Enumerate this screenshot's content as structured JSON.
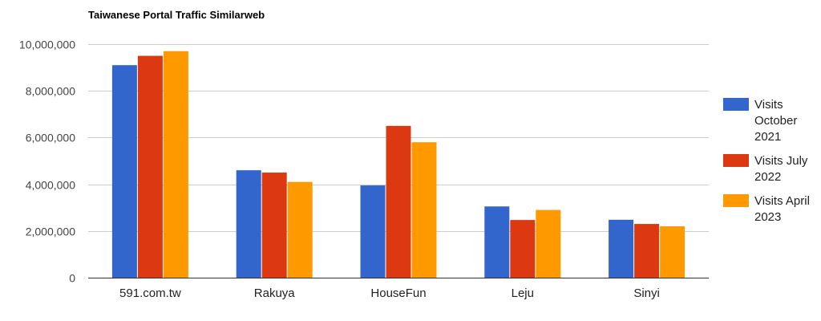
{
  "chart_data": {
    "type": "bar",
    "title": "Taiwanese Portal Traffic Similarweb",
    "xlabel": "",
    "ylabel": "",
    "categories": [
      "591.com.tw",
      "Rakuya",
      "HouseFun",
      "Leju",
      "Sinyi"
    ],
    "series": [
      {
        "name": "Visits October 2021",
        "color": "#3366cc",
        "values": [
          9100000,
          4600000,
          3950000,
          3050000,
          2480000
        ],
        "legend_lines": [
          "Visits",
          "October",
          "2021"
        ]
      },
      {
        "name": "Visits July 2022",
        "color": "#dc3912",
        "values": [
          9500000,
          4500000,
          6500000,
          2470000,
          2300000
        ],
        "legend_lines": [
          "Visits July",
          "2022"
        ]
      },
      {
        "name": "Visits April 2023",
        "color": "#ff9900",
        "values": [
          9700000,
          4100000,
          5800000,
          2900000,
          2200000
        ],
        "legend_lines": [
          "Visits April",
          "2023"
        ]
      }
    ],
    "ylim": [
      0,
      10000000
    ],
    "yticks": [
      0,
      2000000,
      4000000,
      6000000,
      8000000,
      10000000
    ],
    "ytick_labels": [
      "0",
      "2,000,000",
      "4,000,000",
      "6,000,000",
      "8,000,000",
      "10,000,000"
    ],
    "grid": true,
    "legend_position": "right"
  }
}
